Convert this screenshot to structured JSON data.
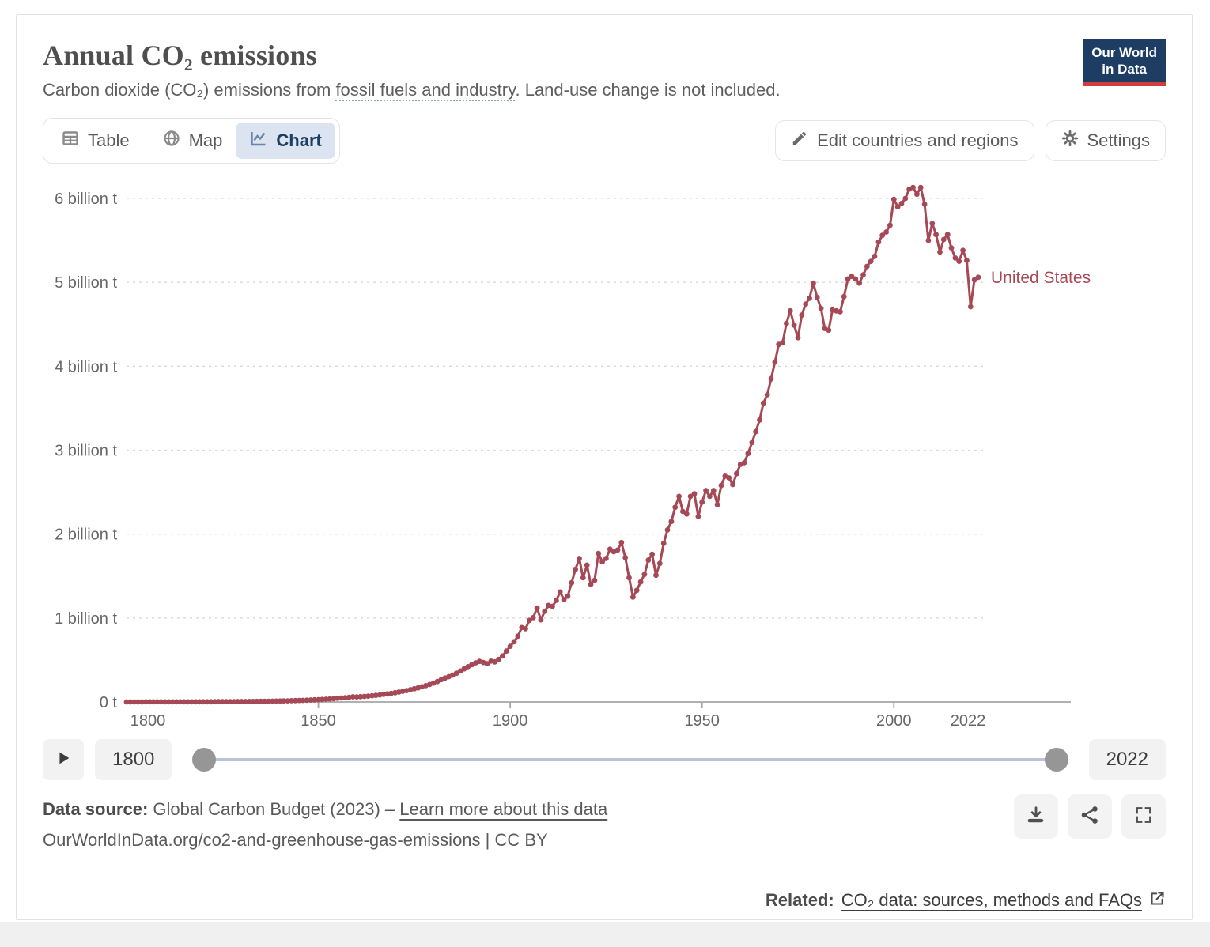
{
  "header": {
    "title": "Annual CO₂ emissions",
    "subtitle_prefix": "Carbon dioxide (CO₂) emissions from ",
    "subtitle_link": "fossil fuels and industry",
    "subtitle_suffix": ". Land-use change is not included.",
    "logo_line1": "Our World",
    "logo_line2": "in Data"
  },
  "toolbar": {
    "tabs": [
      {
        "label": "Table",
        "icon": "table-icon",
        "active": false
      },
      {
        "label": "Map",
        "icon": "globe-icon",
        "active": false
      },
      {
        "label": "Chart",
        "icon": "line-chart-icon",
        "active": true
      }
    ],
    "edit_button": "Edit countries and regions",
    "settings_button": "Settings"
  },
  "timeline": {
    "start_year": "1800",
    "end_year": "2022"
  },
  "footer": {
    "datasource_label": "Data source:",
    "datasource_value": " Global Carbon Budget (2023) – ",
    "learn_more": "Learn more about this data",
    "citation": "OurWorldInData.org/co2-and-greenhouse-gas-emissions | CC BY"
  },
  "related": {
    "label": "Related:",
    "link": "CO₂ data: sources, methods and FAQs"
  },
  "icons": [
    "table-icon",
    "globe-icon",
    "line-chart-icon",
    "pencil-icon",
    "gear-icon",
    "play-icon",
    "download-icon",
    "share-icon",
    "fullscreen-icon",
    "external-link-icon"
  ],
  "colors": {
    "line": "#a64956",
    "navy": "#1d3d63",
    "active_tab_bg": "#dbe4f0",
    "logo_red": "#cf3e3e",
    "slider_track": "#b9c5d7",
    "grid": "#d9d9d9",
    "axis": "#a6a6a6",
    "tick_text": "#666666"
  },
  "chart_data": {
    "type": "line",
    "title": "Annual CO₂ emissions",
    "unit": "billion t",
    "xlabel": "",
    "ylabel": "",
    "grid": true,
    "legend_position": "end-of-line",
    "x_range": [
      1800,
      2022
    ],
    "ylim": [
      0,
      6
    ],
    "y_ticks": [
      {
        "value": 0,
        "label": "0 t"
      },
      {
        "value": 1,
        "label": "1 billion t"
      },
      {
        "value": 2,
        "label": "2 billion t"
      },
      {
        "value": 3,
        "label": "3 billion t"
      },
      {
        "value": 4,
        "label": "4 billion t"
      },
      {
        "value": 5,
        "label": "5 billion t"
      },
      {
        "value": 6,
        "label": "6 billion t"
      }
    ],
    "x_ticks": [
      1800,
      1850,
      1900,
      1950,
      2000,
      2022
    ],
    "series": [
      {
        "name": "United States",
        "year_start": 1800,
        "values": [
          0.0003,
          0.0003,
          0.0003,
          0.0004,
          0.0004,
          0.0005,
          0.0005,
          0.0006,
          0.0006,
          0.0007,
          0.0008,
          0.0008,
          0.0009,
          0.001,
          0.0011,
          0.0012,
          0.0013,
          0.0014,
          0.0016,
          0.0017,
          0.0019,
          0.0021,
          0.0023,
          0.0025,
          0.0027,
          0.003,
          0.0033,
          0.0036,
          0.0039,
          0.0043,
          0.0047,
          0.0051,
          0.0056,
          0.0061,
          0.0067,
          0.0073,
          0.008,
          0.0087,
          0.0095,
          0.0104,
          0.0114,
          0.0124,
          0.0136,
          0.0148,
          0.0162,
          0.0177,
          0.0193,
          0.0211,
          0.0231,
          0.0252,
          0.0276,
          0.0301,
          0.0329,
          0.036,
          0.0393,
          0.0429,
          0.0469,
          0.0512,
          0.056,
          0.0611,
          0.06,
          0.063,
          0.066,
          0.07,
          0.074,
          0.079,
          0.084,
          0.09,
          0.096,
          0.103,
          0.11,
          0.118,
          0.127,
          0.136,
          0.146,
          0.157,
          0.168,
          0.181,
          0.194,
          0.208,
          0.224,
          0.243,
          0.265,
          0.284,
          0.301,
          0.32,
          0.342,
          0.368,
          0.394,
          0.42,
          0.445,
          0.466,
          0.483,
          0.47,
          0.455,
          0.486,
          0.478,
          0.508,
          0.548,
          0.606,
          0.663,
          0.718,
          0.784,
          0.886,
          0.872,
          0.972,
          1.005,
          1.119,
          0.979,
          1.08,
          1.15,
          1.14,
          1.21,
          1.31,
          1.22,
          1.26,
          1.42,
          1.58,
          1.71,
          1.48,
          1.63,
          1.4,
          1.45,
          1.77,
          1.67,
          1.71,
          1.82,
          1.79,
          1.81,
          1.9,
          1.72,
          1.48,
          1.25,
          1.33,
          1.43,
          1.52,
          1.69,
          1.76,
          1.51,
          1.65,
          1.89,
          2.05,
          2.15,
          2.32,
          2.45,
          2.27,
          2.24,
          2.45,
          2.48,
          2.21,
          2.38,
          2.52,
          2.45,
          2.52,
          2.35,
          2.58,
          2.69,
          2.67,
          2.59,
          2.72,
          2.83,
          2.85,
          2.96,
          3.09,
          3.22,
          3.36,
          3.56,
          3.66,
          3.85,
          4.05,
          4.26,
          4.28,
          4.51,
          4.66,
          4.49,
          4.34,
          4.61,
          4.74,
          4.81,
          4.99,
          4.82,
          4.69,
          4.45,
          4.43,
          4.67,
          4.66,
          4.65,
          4.83,
          5.04,
          5.07,
          5.04,
          4.99,
          5.09,
          5.19,
          5.25,
          5.31,
          5.48,
          5.56,
          5.6,
          5.68,
          5.99,
          5.9,
          5.94,
          6.0,
          6.11,
          6.13,
          6.05,
          6.13,
          5.93,
          5.5,
          5.7,
          5.57,
          5.36,
          5.51,
          5.57,
          5.41,
          5.29,
          5.25,
          5.38,
          5.26,
          4.71,
          5.03,
          5.06
        ]
      }
    ]
  }
}
